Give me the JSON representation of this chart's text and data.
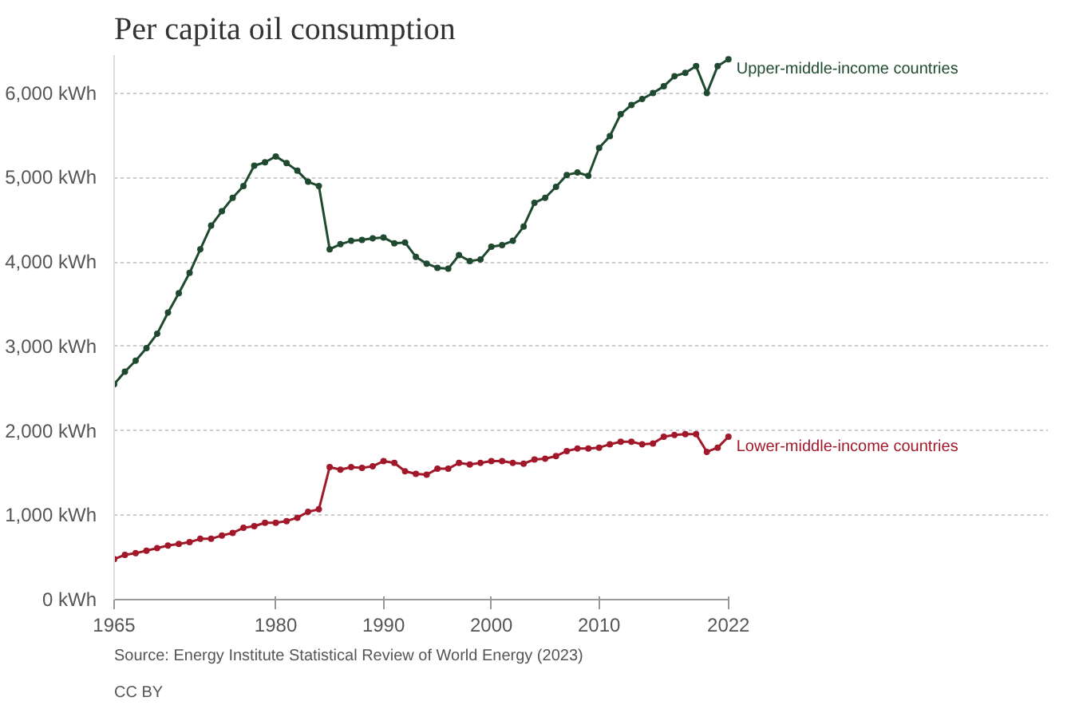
{
  "chart_data": {
    "type": "line",
    "title": "Per capita oil consumption",
    "x": [
      1965,
      1966,
      1967,
      1968,
      1969,
      1970,
      1971,
      1972,
      1973,
      1974,
      1975,
      1976,
      1977,
      1978,
      1979,
      1980,
      1981,
      1982,
      1983,
      1984,
      1985,
      1986,
      1987,
      1988,
      1989,
      1990,
      1991,
      1992,
      1993,
      1994,
      1995,
      1996,
      1997,
      1998,
      1999,
      2000,
      2001,
      2002,
      2003,
      2004,
      2005,
      2006,
      2007,
      2008,
      2009,
      2010,
      2011,
      2012,
      2013,
      2014,
      2015,
      2016,
      2017,
      2018,
      2019,
      2020,
      2021,
      2022
    ],
    "series": [
      {
        "name": "Upper-middle-income countries",
        "color": "#1f4a30",
        "values": [
          2550,
          2700,
          2830,
          2980,
          3150,
          3400,
          3630,
          3870,
          4150,
          4430,
          4600,
          4760,
          4900,
          5140,
          5180,
          5250,
          5170,
          5080,
          4950,
          4900,
          4150,
          4210,
          4250,
          4260,
          4280,
          4290,
          4220,
          4230,
          4060,
          3980,
          3930,
          3920,
          4080,
          4010,
          4030,
          4180,
          4200,
          4250,
          4420,
          4700,
          4760,
          4890,
          5030,
          5060,
          5020,
          5350,
          5490,
          5750,
          5860,
          5930,
          6000,
          6080,
          6200,
          6240,
          6320,
          6000,
          6320,
          6400
        ]
      },
      {
        "name": "Lower-middle-income countries",
        "color": "#a2182b",
        "values": [
          480,
          530,
          550,
          580,
          610,
          640,
          660,
          680,
          720,
          720,
          760,
          790,
          850,
          870,
          910,
          910,
          930,
          970,
          1040,
          1070,
          1570,
          1540,
          1570,
          1560,
          1580,
          1640,
          1620,
          1520,
          1490,
          1480,
          1550,
          1550,
          1620,
          1600,
          1620,
          1640,
          1640,
          1620,
          1610,
          1660,
          1670,
          1700,
          1760,
          1790,
          1790,
          1800,
          1840,
          1870,
          1870,
          1840,
          1850,
          1930,
          1950,
          1960,
          1960,
          1750,
          1800,
          1930
        ]
      }
    ],
    "xlim": [
      1965,
      2022
    ],
    "xticks": [
      1965,
      1980,
      1990,
      2000,
      2010,
      2022
    ],
    "ylim": [
      0,
      6450
    ],
    "yticks": [
      {
        "value": 0,
        "label": "0 kWh"
      },
      {
        "value": 1000,
        "label": "1,000 kWh"
      },
      {
        "value": 2000,
        "label": "2,000 kWh"
      },
      {
        "value": 3000,
        "label": "3,000 kWh"
      },
      {
        "value": 4000,
        "label": "4,000 kWh"
      },
      {
        "value": 5000,
        "label": "5,000 kWh"
      },
      {
        "value": 6000,
        "label": "6,000 kWh"
      }
    ],
    "grid": "y",
    "legend": false,
    "marker": "circle",
    "line_style": "solid",
    "annotations": [
      "Source: Energy Institute Statistical Review of World Energy (2023)",
      "CC BY"
    ]
  }
}
